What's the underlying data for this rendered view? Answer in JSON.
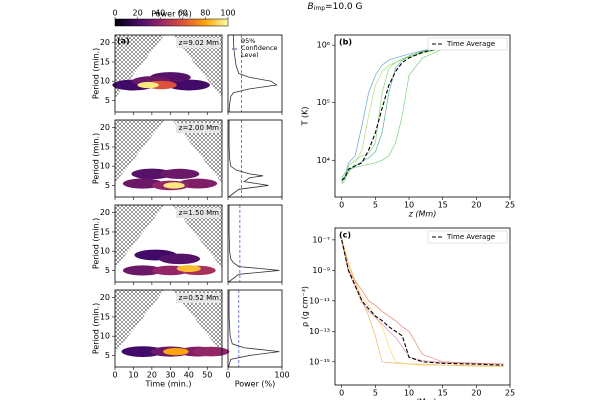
{
  "title": {
    "main": "B",
    "sub": "imp",
    "rest": "=10.0 G"
  },
  "chart_data": [
    {
      "type": "colorbar",
      "title": "Power (%)",
      "lim": [
        0,
        100
      ],
      "ticks": [
        0,
        20,
        40,
        60,
        80,
        100
      ],
      "colors": [
        "#000004",
        "#420a68",
        "#932667",
        "#dd513a",
        "#fca50a",
        "#fcffa4"
      ]
    },
    {
      "type": "wavelet",
      "label": "(a)",
      "xlabel": "Time (min.)",
      "ylabel": "Period (min.)",
      "xlim": [
        0,
        58
      ],
      "ylim": [
        2,
        22
      ],
      "xticks": [
        0,
        10,
        20,
        30,
        40,
        50
      ],
      "yticks": [
        5,
        10,
        15,
        20
      ],
      "global_xlabel": "Power (%)",
      "global_xlim": [
        0,
        100
      ],
      "global_xticks": [
        0,
        100
      ],
      "line_color": "#333333",
      "confidence_color": "#3344cc",
      "legend": [
        "95%",
        "Confidence",
        "Level"
      ],
      "panels": [
        {
          "annotation": "z=9.02 Mm",
          "time": [
            10,
            40,
            30,
            20,
            25,
            18
          ],
          "period": [
            9,
            9,
            11,
            10,
            9,
            9
          ],
          "power": [
            20,
            20,
            25,
            30,
            60,
            95
          ],
          "global": {
            "period": [
              2,
              4,
              6,
              7,
              8,
              9,
              10,
              11,
              12,
              14,
              17,
              20,
              22
            ],
            "power": [
              2,
              3,
              5,
              10,
              40,
              90,
              80,
              40,
              20,
              15,
              12,
              10,
              10
            ]
          },
          "confidence": 25
        },
        {
          "annotation": "z=2.00 Mm",
          "time": [
            20,
            35,
            15,
            45,
            30,
            32
          ],
          "period": [
            8,
            8,
            5.5,
            5.5,
            5,
            5
          ],
          "power": [
            25,
            30,
            30,
            35,
            40,
            95
          ],
          "global": {
            "period": [
              2,
              4,
              5,
              6,
              7,
              7.5,
              8,
              9,
              10,
              12,
              15,
              20,
              22
            ],
            "power": [
              1,
              20,
              75,
              30,
              40,
              65,
              40,
              15,
              5,
              3,
              2,
              2,
              2
            ]
          },
          "confidence": 25
        },
        {
          "annotation": "z=1.50 Mm",
          "time": [
            22,
            35,
            15,
            30,
            45,
            40
          ],
          "period": [
            9,
            8,
            5,
            5,
            5,
            5.5
          ],
          "power": [
            20,
            25,
            30,
            40,
            45,
            85
          ],
          "global": {
            "period": [
              2,
              4,
              5,
              5.5,
              6,
              7,
              8,
              10,
              15,
              22
            ],
            "power": [
              1,
              20,
              95,
              60,
              20,
              10,
              5,
              3,
              2,
              2
            ]
          },
          "confidence": 22
        },
        {
          "annotation": "z=0.52 Mm",
          "time": [
            15,
            30,
            45,
            52,
            33
          ],
          "period": [
            6,
            6,
            6,
            6,
            6
          ],
          "power": [
            20,
            30,
            35,
            40,
            80
          ],
          "global": {
            "period": [
              2,
              4,
              5,
              6,
              7,
              8,
              10,
              15,
              22
            ],
            "power": [
              1,
              5,
              40,
              95,
              30,
              8,
              4,
              2,
              2
            ]
          },
          "confidence": 20
        }
      ]
    },
    {
      "type": "line",
      "label": "(b)",
      "xlabel": "z (Mm)",
      "ylabel": "T (K)",
      "log_y": true,
      "legend": "upper right",
      "xlim": [
        -1,
        25
      ],
      "xticks": [
        0,
        5,
        10,
        15,
        20,
        25
      ],
      "ylim": [
        2300,
        1500000
      ],
      "yticks": [
        {
          "value": 10000,
          "label": "10⁴"
        },
        {
          "value": 100000,
          "label": "10⁵"
        },
        {
          "value": 1000000,
          "label": "10⁶"
        }
      ],
      "x": [
        0,
        0.5,
        1,
        2,
        3,
        4,
        5,
        6,
        7,
        8,
        9,
        10,
        12,
        15,
        20
      ],
      "series": [
        {
          "name": "Time Average",
          "color": "#000000",
          "values": [
            4500,
            5000,
            7000,
            8000,
            9000,
            15000,
            30000,
            80000,
            200000,
            350000,
            500000,
            600000,
            750000,
            900000,
            1000000
          ]
        }
      ],
      "ensemble": [
        {
          "color": "#3b8fc4",
          "values": [
            4000,
            5500,
            9000,
            12000,
            40000,
            150000,
            300000,
            450000,
            550000,
            600000,
            650000,
            700000,
            800000,
            950000,
            1100000
          ]
        },
        {
          "color": "#55c667",
          "values": [
            5000,
            6000,
            7000,
            7500,
            8000,
            8500,
            9000,
            10000,
            12000,
            20000,
            60000,
            300000,
            600000,
            850000,
            1000000
          ]
        },
        {
          "color": "#a8d85a",
          "values": [
            4200,
            4800,
            6000,
            9000,
            15000,
            60000,
            200000,
            350000,
            450000,
            500000,
            550000,
            620000,
            720000,
            880000,
            1050000
          ]
        },
        {
          "color": "#2a9d8f",
          "values": [
            4800,
            5200,
            6500,
            8000,
            9500,
            11000,
            14000,
            30000,
            150000,
            400000,
            550000,
            650000,
            780000,
            920000,
            1000000
          ]
        },
        {
          "color": "#6ccf5a",
          "values": [
            3800,
            4500,
            8000,
            10000,
            12000,
            13000,
            20000,
            150000,
            400000,
            500000,
            580000,
            640000,
            760000,
            900000,
            980000
          ]
        }
      ]
    },
    {
      "type": "line",
      "label": "(c)",
      "xlabel": "z (Mm)",
      "ylabel": "ρ (g cm⁻³)",
      "log_y": true,
      "legend": "upper right",
      "xlim": [
        -1,
        25
      ],
      "xticks": [
        0,
        5,
        10,
        15,
        20,
        25
      ],
      "ylim": [
        3e-17,
        6e-07
      ],
      "yticks": [
        {
          "value": 1e-07,
          "label": "10⁻⁷"
        },
        {
          "value": 1e-09,
          "label": "10⁻⁹"
        },
        {
          "value": 1e-11,
          "label": "10⁻¹¹"
        },
        {
          "value": 1e-13,
          "label": "10⁻¹³"
        },
        {
          "value": 1e-15,
          "label": "10⁻¹⁵"
        }
      ],
      "x": [
        0,
        0.5,
        1,
        2,
        3,
        4,
        5,
        6,
        7,
        8,
        9,
        10,
        12,
        15,
        20,
        24
      ],
      "series": [
        {
          "name": "Time Average",
          "color": "#000000",
          "values": [
            1e-07,
            1e-08,
            1e-09,
            1e-10,
            1e-11,
            3e-12,
            1e-12,
            5e-13,
            2e-13,
            1e-13,
            5e-14,
            2e-15,
            1e-15,
            8e-16,
            7e-16,
            6e-16
          ]
        }
      ],
      "ensemble": [
        {
          "color": "#f4a340",
          "values": [
            1.2e-07,
            2e-08,
            3e-09,
            2e-10,
            1e-11,
            1e-12,
            5e-14,
            1e-15,
            9e-16,
            8e-16,
            8e-16,
            7e-16,
            7e-16,
            6e-16,
            6e-16,
            5e-16
          ]
        },
        {
          "color": "#e8604c",
          "values": [
            9e-08,
            1e-08,
            1e-09,
            2e-10,
            5e-11,
            1e-11,
            5e-12,
            2e-12,
            1e-12,
            5e-13,
            2e-13,
            1e-13,
            3e-15,
            1e-15,
            8e-16,
            7e-16
          ]
        },
        {
          "color": "#f7c948",
          "values": [
            1.1e-07,
            1.5e-08,
            2e-09,
            1.5e-10,
            2e-11,
            5e-12,
            1e-12,
            2e-13,
            1e-14,
            1e-15,
            8e-16,
            7e-16,
            6e-16,
            6e-16,
            5e-16,
            5e-16
          ]
        },
        {
          "color": "#e07a9a",
          "values": [
            8e-08,
            8e-09,
            8e-10,
            8e-11,
            8e-12,
            2e-12,
            8e-13,
            3e-13,
            1e-13,
            4e-14,
            1e-14,
            2e-15,
            1.2e-15,
            9e-16,
            8e-16,
            7e-16
          ]
        }
      ]
    }
  ]
}
